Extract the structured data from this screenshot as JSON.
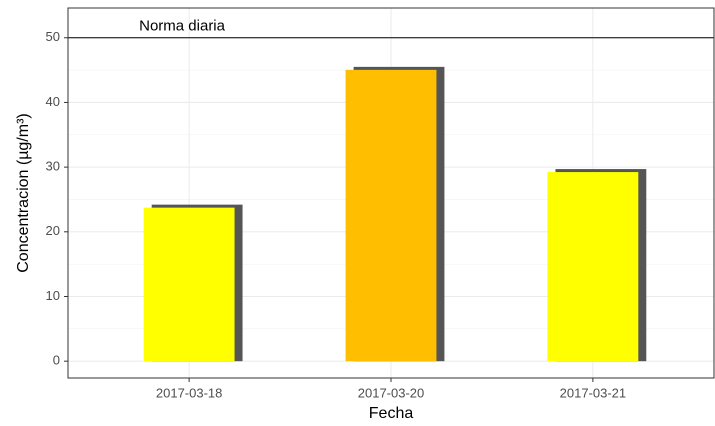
{
  "chart_data": {
    "type": "bar",
    "categories": [
      "2017-03-18",
      "2017-03-20",
      "2017-03-21"
    ],
    "values": [
      24.2,
      45.5,
      29.7
    ],
    "colors": [
      "#ffff00",
      "#ffbf00",
      "#ffff00"
    ],
    "shadow_color": "#555555",
    "x_label": "Fecha",
    "y_label": "Concentracion (µg/m³)",
    "ylim": [
      -2.6,
      54.6
    ],
    "yticks": [
      0,
      10,
      20,
      30,
      40,
      50
    ],
    "grid": true,
    "hline": {
      "value": 50,
      "label": "Norma diaria"
    }
  }
}
